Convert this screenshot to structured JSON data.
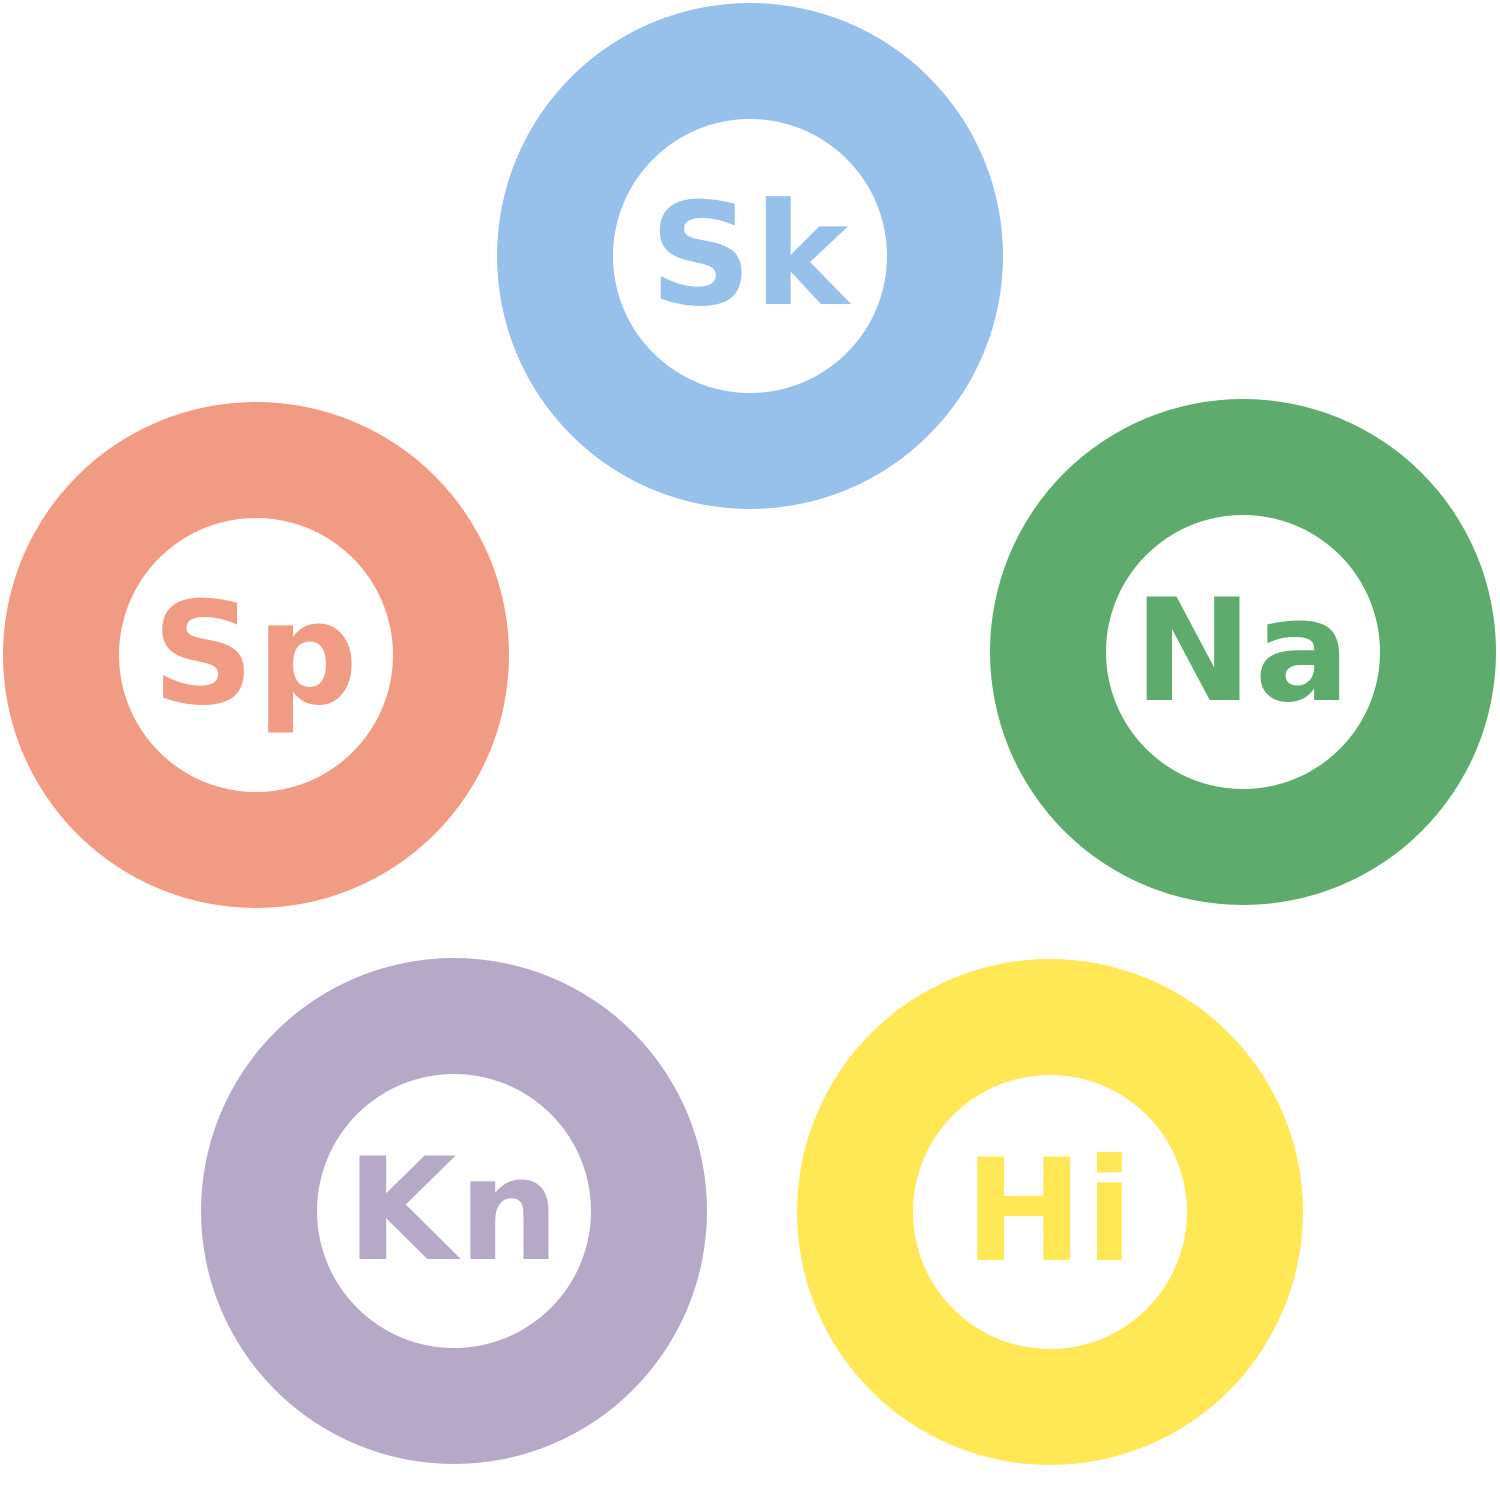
{
  "nodes": [
    {
      "id": "sk",
      "label": "Sk",
      "color": "#97c1ea"
    },
    {
      "id": "sp",
      "label": "Sp",
      "color": "#f29b84"
    },
    {
      "id": "na",
      "label": "Na",
      "color": "#5eab6d"
    },
    {
      "id": "kn",
      "label": "Kn",
      "color": "#b6a9c8"
    },
    {
      "id": "hi",
      "label": "Hi",
      "color": "#fee856"
    }
  ]
}
